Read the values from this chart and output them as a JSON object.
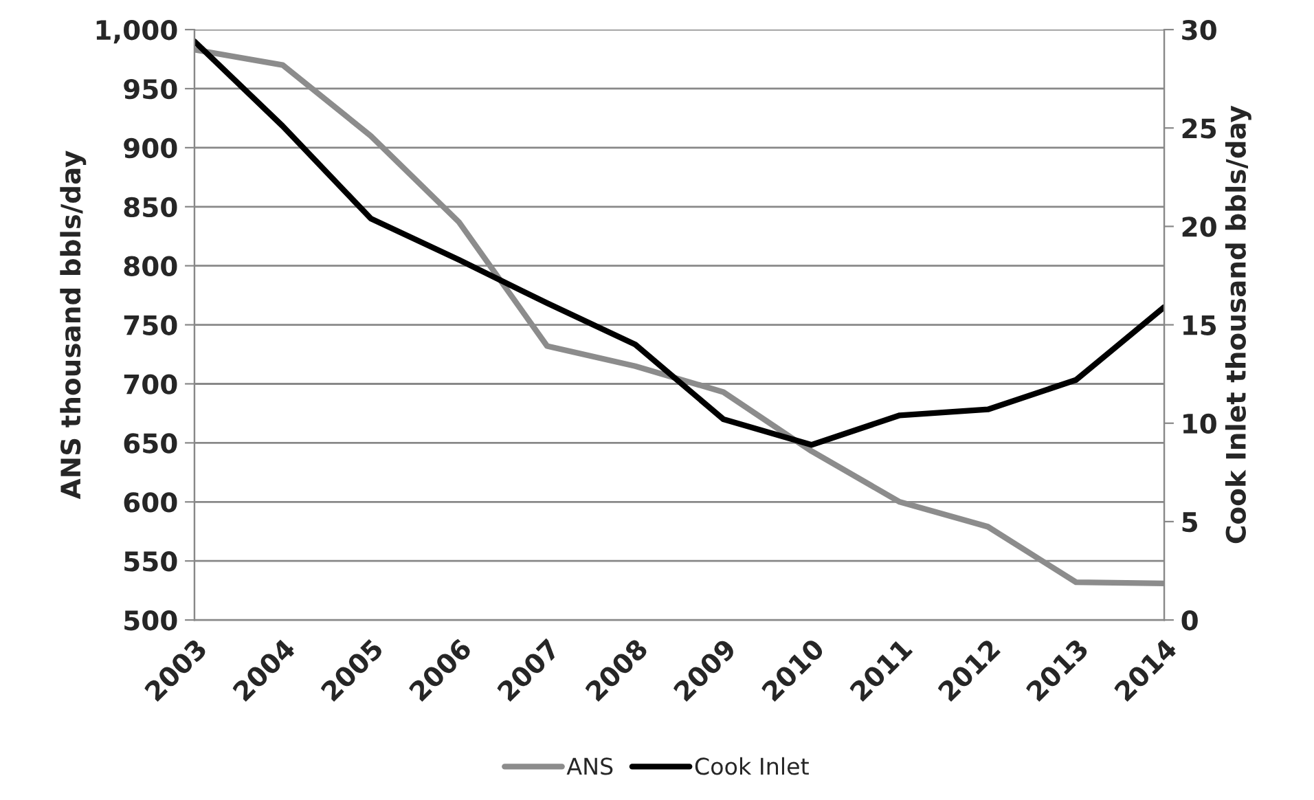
{
  "chart_data": {
    "type": "line",
    "categories": [
      "2003",
      "2004",
      "2005",
      "2006",
      "2007",
      "2008",
      "2009",
      "2010",
      "2011",
      "2012",
      "2013",
      "2014"
    ],
    "ylabel": "ANS thousand bbls/day",
    "y2label": "Cook Inlet thousand bbls/day",
    "ylim": [
      500,
      1000
    ],
    "yticks": [
      500,
      550,
      600,
      650,
      700,
      750,
      800,
      850,
      900,
      950,
      {
        "value": 1000,
        "label": "1,000"
      }
    ],
    "y2lim": [
      0,
      30
    ],
    "y2ticks": [
      0,
      5,
      10,
      15,
      20,
      25,
      30
    ],
    "grid": "y",
    "legend": "bottom",
    "marker": "none",
    "line_style": "solid",
    "series": [
      {
        "name": "ANS",
        "color": "#8c8c8c",
        "values": [
          983,
          970,
          910,
          837,
          732,
          715,
          693,
          643,
          600,
          579,
          532,
          531
        ]
      },
      {
        "name": "Cook Inlet",
        "color": "#000000",
        "axis": "y2",
        "values": [
          29.4,
          25.1,
          20.4,
          18.3,
          16.1,
          14.0,
          10.2,
          8.9,
          10.4,
          10.7,
          12.2,
          15.9
        ]
      }
    ]
  }
}
